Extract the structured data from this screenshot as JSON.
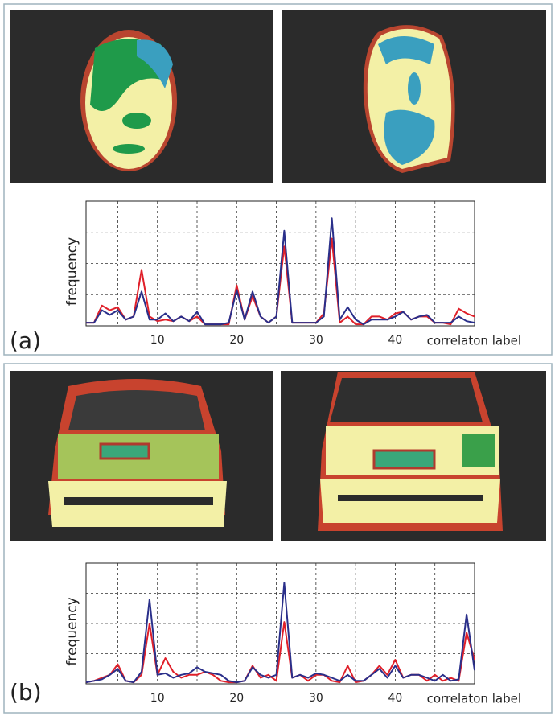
{
  "chart_data": [
    {
      "type": "line",
      "panel_label": "(a)",
      "xlabel": "correlaton label",
      "ylabel": "frequency",
      "x": [
        1,
        2,
        3,
        4,
        5,
        6,
        7,
        8,
        9,
        10,
        11,
        12,
        13,
        14,
        15,
        16,
        17,
        18,
        19,
        20,
        21,
        22,
        23,
        24,
        25,
        26,
        27,
        28,
        29,
        30,
        31,
        32,
        33,
        34,
        35,
        36,
        37,
        38,
        39,
        40,
        41,
        42,
        43,
        44,
        45,
        46,
        47,
        48,
        49,
        50
      ],
      "xlim": [
        1,
        50
      ],
      "ylim": [
        0,
        4
      ],
      "grid": true,
      "xticks": [
        {
          "value": 5,
          "label": null
        },
        10,
        {
          "value": 15,
          "label": null
        },
        20,
        {
          "value": 25,
          "label": null
        },
        30,
        {
          "value": 35,
          "label": null
        },
        40,
        {
          "value": 45,
          "label": null
        }
      ],
      "yticks": [
        {
          "value": 1,
          "label": null
        },
        {
          "value": 2,
          "label": null
        },
        {
          "value": 3,
          "label": null
        }
      ],
      "series": [
        {
          "color": "#e0202a",
          "values": [
            0.1,
            0.1,
            0.65,
            0.5,
            0.6,
            0.2,
            0.3,
            1.8,
            0.3,
            0.15,
            0.2,
            0.15,
            0.3,
            0.15,
            0.3,
            0.05,
            0.05,
            0.05,
            0.05,
            1.3,
            0.2,
            0.95,
            0.3,
            0.1,
            0.3,
            2.55,
            0.1,
            0.1,
            0.1,
            0.1,
            0.4,
            2.8,
            0.1,
            0.3,
            0.05,
            0.05,
            0.3,
            0.3,
            0.2,
            0.4,
            0.45,
            0.2,
            0.3,
            0.3,
            0.1,
            0.1,
            0.05,
            0.55,
            0.4,
            0.3
          ]
        },
        {
          "color": "#2a2f8a",
          "values": [
            0.1,
            0.1,
            0.5,
            0.35,
            0.5,
            0.2,
            0.3,
            1.1,
            0.2,
            0.2,
            0.4,
            0.15,
            0.3,
            0.15,
            0.45,
            0.05,
            0.05,
            0.05,
            0.1,
            1.15,
            0.2,
            1.1,
            0.3,
            0.1,
            0.3,
            3.05,
            0.1,
            0.1,
            0.1,
            0.1,
            0.3,
            3.45,
            0.2,
            0.6,
            0.2,
            0.05,
            0.2,
            0.2,
            0.2,
            0.3,
            0.45,
            0.2,
            0.3,
            0.35,
            0.1,
            0.1,
            0.1,
            0.3,
            0.15,
            0.1
          ]
        }
      ]
    },
    {
      "type": "line",
      "panel_label": "(b)",
      "xlabel": "correlaton label",
      "ylabel": "frequency",
      "x": [
        1,
        2,
        3,
        4,
        5,
        6,
        7,
        8,
        9,
        10,
        11,
        12,
        13,
        14,
        15,
        16,
        17,
        18,
        19,
        20,
        21,
        22,
        23,
        24,
        25,
        26,
        27,
        28,
        29,
        30,
        31,
        32,
        33,
        34,
        35,
        36,
        37,
        38,
        39,
        40,
        41,
        42,
        43,
        44,
        45,
        46,
        47,
        48,
        49,
        50
      ],
      "xlim": [
        1,
        50
      ],
      "ylim": [
        0,
        4
      ],
      "grid": true,
      "xticks": [
        {
          "value": 5,
          "label": null
        },
        10,
        {
          "value": 15,
          "label": null
        },
        20,
        {
          "value": 25,
          "label": null
        },
        30,
        {
          "value": 35,
          "label": null
        },
        40,
        {
          "value": 45,
          "label": null
        }
      ],
      "yticks": [
        {
          "value": 1,
          "label": null
        },
        {
          "value": 2,
          "label": null
        },
        {
          "value": 3,
          "label": null
        }
      ],
      "series": [
        {
          "color": "#e0202a",
          "values": [
            0.05,
            0.1,
            0.2,
            0.3,
            0.65,
            0.1,
            0.05,
            0.3,
            2.0,
            0.3,
            0.85,
            0.4,
            0.2,
            0.3,
            0.3,
            0.4,
            0.3,
            0.1,
            0.05,
            0.05,
            0.1,
            0.6,
            0.2,
            0.3,
            0.1,
            2.05,
            0.2,
            0.3,
            0.1,
            0.3,
            0.3,
            0.1,
            0.05,
            0.6,
            0.05,
            0.1,
            0.3,
            0.6,
            0.3,
            0.8,
            0.2,
            0.3,
            0.3,
            0.1,
            0.3,
            0.1,
            0.2,
            0.1,
            1.7,
            0.8
          ]
        },
        {
          "color": "#2a2f8a",
          "values": [
            0.05,
            0.1,
            0.15,
            0.3,
            0.5,
            0.1,
            0.05,
            0.4,
            2.8,
            0.3,
            0.35,
            0.2,
            0.3,
            0.35,
            0.55,
            0.4,
            0.35,
            0.3,
            0.1,
            0.05,
            0.1,
            0.55,
            0.3,
            0.2,
            0.3,
            3.35,
            0.2,
            0.3,
            0.2,
            0.35,
            0.3,
            0.2,
            0.1,
            0.3,
            0.1,
            0.1,
            0.3,
            0.5,
            0.2,
            0.6,
            0.2,
            0.3,
            0.3,
            0.2,
            0.1,
            0.3,
            0.1,
            0.15,
            2.3,
            0.45
          ]
        }
      ]
    }
  ]
}
